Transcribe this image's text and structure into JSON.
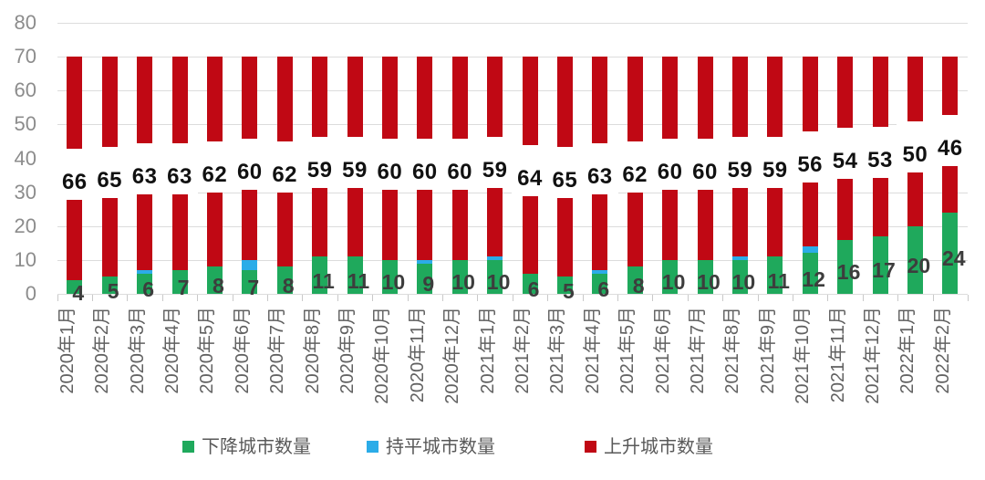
{
  "chart_data": {
    "type": "bar",
    "stacked": true,
    "stack_total": 70,
    "title": "",
    "xlabel": "",
    "ylabel": "",
    "grid": "horizontal",
    "legend_position": "bottom",
    "categories": [
      "2020年1月",
      "2020年2月",
      "2020年3月",
      "2020年4月",
      "2020年5月",
      "2020年6月",
      "2020年7月",
      "2020年8月",
      "2020年9月",
      "2020年10月",
      "2020年11月",
      "2020年12月",
      "2021年1月",
      "2021年2月",
      "2021年3月",
      "2021年4月",
      "2021年5月",
      "2021年6月",
      "2021年7月",
      "2021年8月",
      "2021年9月",
      "2021年10月",
      "2021年11月",
      "2021年12月",
      "2022年1月",
      "2022年2月"
    ],
    "series": [
      {
        "name": "下降城市数量",
        "color": "#1fa95c",
        "values": [
          4,
          5,
          6,
          7,
          8,
          7,
          8,
          11,
          11,
          10,
          9,
          10,
          10,
          6,
          5,
          6,
          8,
          10,
          10,
          10,
          11,
          12,
          16,
          17,
          20,
          24
        ],
        "labels": "inside-bottom",
        "label_color": "#3d3d3d"
      },
      {
        "name": "持平城市数量",
        "color": "#2bace8",
        "values": [
          0,
          0,
          1,
          0,
          0,
          3,
          0,
          0,
          0,
          0,
          1,
          0,
          1,
          0,
          0,
          1,
          0,
          0,
          0,
          1,
          0,
          2,
          0,
          0,
          0,
          0
        ],
        "labels": "none"
      },
      {
        "name": "上升城市数量",
        "color": "#c00814",
        "values": [
          66,
          65,
          63,
          63,
          62,
          60,
          62,
          59,
          59,
          60,
          60,
          60,
          59,
          64,
          65,
          63,
          62,
          60,
          60,
          59,
          59,
          56,
          54,
          53,
          50,
          46
        ],
        "labels": "boxed-middle",
        "label_color": "#111111"
      }
    ],
    "y_axis": {
      "min": 0,
      "max": 80,
      "tick_step": 10,
      "ticks": [
        0,
        10,
        20,
        30,
        40,
        50,
        60,
        70,
        80
      ]
    }
  },
  "legend": {
    "items": [
      {
        "label": "下降城市数量",
        "color": "#1fa95c"
      },
      {
        "label": "持平城市数量",
        "color": "#2bace8"
      },
      {
        "label": "上升城市数量",
        "color": "#c00814"
      }
    ]
  },
  "colors": {
    "down": "#1fa95c",
    "flat": "#2bace8",
    "up": "#c00814",
    "gridline": "#dcdcdc",
    "axis_text": "#8c8c8c",
    "category_text": "#616161",
    "legend_text": "#595959"
  }
}
